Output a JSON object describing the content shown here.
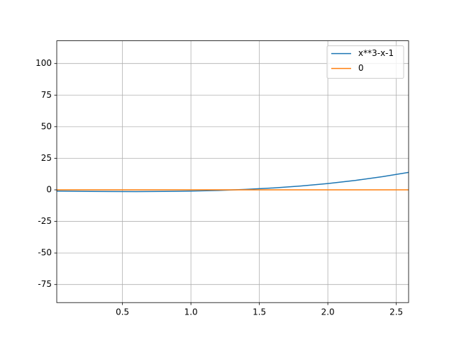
{
  "chart_data": {
    "type": "line",
    "x": [
      0.02,
      0.2,
      0.4,
      0.6,
      0.8,
      1.0,
      1.2,
      1.4,
      1.6,
      1.8,
      2.0,
      2.2,
      2.4,
      2.59
    ],
    "series": [
      {
        "name": "x**3-x-1",
        "color": "#1f77b4",
        "values": [
          -1.02,
          -1.192,
          -1.336,
          -1.384,
          -1.288,
          -1,
          -0.472,
          0.344,
          1.496,
          3.032,
          5,
          7.448,
          10.424,
          13.78
        ]
      },
      {
        "name": "0",
        "color": "#ff7f0e",
        "values": [
          0,
          0,
          0,
          0,
          0,
          0,
          0,
          0,
          0,
          0,
          0,
          0,
          0,
          0
        ]
      }
    ],
    "xlim": [
      0.02,
      2.59
    ],
    "ylim": [
      -89.3,
      118
    ],
    "xticks": [
      0.5,
      {
        "value": 1,
        "label": "1.0"
      },
      1.5,
      {
        "value": 2,
        "label": "2.0"
      },
      2.5
    ],
    "yticks": [
      -75,
      -50,
      -25,
      0,
      25,
      50,
      75,
      100
    ],
    "grid": true,
    "legend": "upper-right"
  }
}
